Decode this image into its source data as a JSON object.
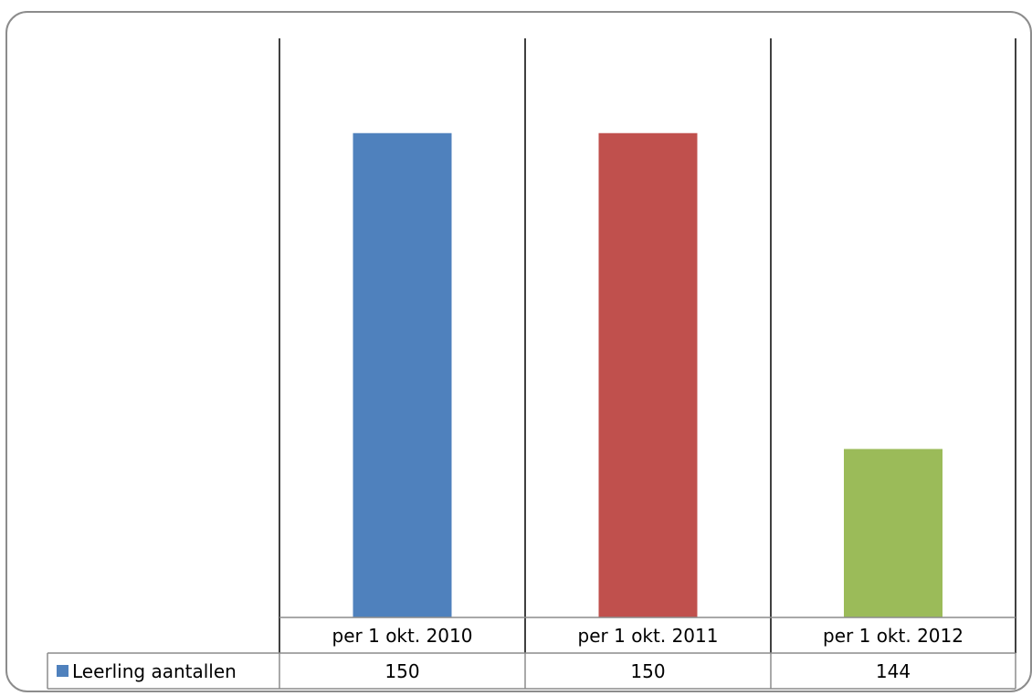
{
  "chart_data": {
    "type": "bar",
    "categories": [
      "per 1 okt. 2010",
      "per 1 okt. 2011",
      "per 1 okt. 2012"
    ],
    "series": [
      {
        "name": "Leerling aantallen",
        "values": [
          150,
          150,
          144
        ],
        "labels": [
          "150",
          "150",
          "144"
        ]
      }
    ],
    "bar_colors": [
      "#4f81bd",
      "#c0504d",
      "#9bbb59"
    ],
    "ylim": [
      140.8,
      151.8
    ],
    "data_table": true,
    "legend": "in data table",
    "grid": false
  }
}
